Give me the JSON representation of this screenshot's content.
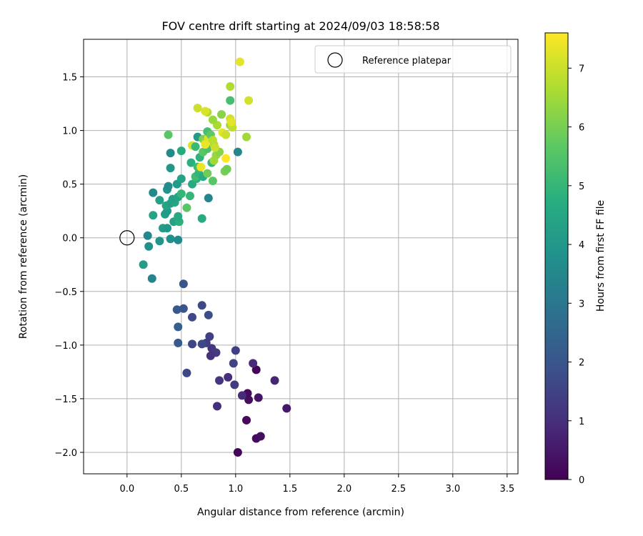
{
  "chart_data": {
    "type": "scatter",
    "title": "FOV centre drift starting at 2024/09/03 18:58:58",
    "xlabel": "Angular distance from reference (arcmin)",
    "ylabel": "Rotation from reference (arcmin)",
    "xlim": [
      -0.4,
      3.6
    ],
    "ylim": [
      -2.2,
      1.85
    ],
    "xticks": [
      0.0,
      0.5,
      1.0,
      1.5,
      2.0,
      2.5,
      3.0,
      3.5
    ],
    "xtick_labels": [
      "0.0",
      "0.5",
      "1.0",
      "1.5",
      "2.0",
      "2.5",
      "3.0",
      "3.5"
    ],
    "yticks": [
      -2.0,
      -1.5,
      -1.0,
      -0.5,
      0.0,
      0.5,
      1.0,
      1.5
    ],
    "ytick_labels": [
      "−2.0",
      "−1.5",
      "−1.0",
      "−0.5",
      "0.0",
      "0.5",
      "1.0",
      "1.5"
    ],
    "grid": true,
    "legend": {
      "position": "upper-right",
      "entries": [
        "Reference platepar"
      ]
    },
    "reference_point": {
      "x": 0.0,
      "y": 0.0
    },
    "colorbar": {
      "label": "Hours from first FF file",
      "colormap": "viridis",
      "range": [
        0,
        7.6
      ],
      "ticks": [
        0,
        1,
        2,
        3,
        4,
        5,
        6,
        7
      ],
      "tick_labels": [
        "0",
        "1",
        "2",
        "3",
        "4",
        "5",
        "6",
        "7"
      ]
    },
    "points": [
      [
        1.02,
        -2.0,
        0.1
      ],
      [
        1.19,
        -1.87,
        0.2
      ],
      [
        1.23,
        -1.85,
        0.3
      ],
      [
        1.1,
        -1.7,
        0.2
      ],
      [
        1.47,
        -1.59,
        0.5
      ],
      [
        1.21,
        -1.49,
        0.4
      ],
      [
        1.12,
        -1.51,
        0.3
      ],
      [
        1.11,
        -1.45,
        0.2
      ],
      [
        1.19,
        -1.23,
        0.1
      ],
      [
        1.36,
        -1.33,
        0.8
      ],
      [
        1.16,
        -1.17,
        0.9
      ],
      [
        1.06,
        -1.47,
        0.9
      ],
      [
        0.83,
        -1.57,
        1.0
      ],
      [
        0.85,
        -1.33,
        1.2
      ],
      [
        0.93,
        -1.3,
        1.0
      ],
      [
        0.99,
        -1.37,
        1.3
      ],
      [
        0.98,
        -1.17,
        1.5
      ],
      [
        1.0,
        -1.05,
        1.4
      ],
      [
        0.78,
        -1.03,
        1.2
      ],
      [
        0.82,
        -1.07,
        1.3
      ],
      [
        0.76,
        -0.92,
        1.4
      ],
      [
        0.77,
        -1.1,
        1.1
      ],
      [
        0.73,
        -0.98,
        1.4
      ],
      [
        0.69,
        -0.99,
        1.7
      ],
      [
        0.6,
        -0.99,
        1.6
      ],
      [
        0.6,
        -0.74,
        1.7
      ],
      [
        0.55,
        -1.26,
        1.6
      ],
      [
        0.47,
        -0.98,
        2.1
      ],
      [
        0.47,
        -0.83,
        2.3
      ],
      [
        0.46,
        -0.67,
        2.1
      ],
      [
        0.52,
        -0.66,
        2.0
      ],
      [
        0.52,
        -0.43,
        2.0
      ],
      [
        0.69,
        -0.63,
        1.7
      ],
      [
        0.75,
        -0.72,
        1.8
      ],
      [
        0.15,
        -0.25,
        4.2
      ],
      [
        0.2,
        -0.08,
        3.8
      ],
      [
        0.23,
        -0.38,
        3.4
      ],
      [
        0.19,
        0.02,
        3.5
      ],
      [
        0.3,
        -0.03,
        3.9
      ],
      [
        0.4,
        -0.01,
        3.8
      ],
      [
        0.47,
        -0.02,
        3.6
      ],
      [
        0.33,
        0.09,
        4.2
      ],
      [
        0.37,
        0.09,
        4.0
      ],
      [
        0.43,
        0.15,
        4.4
      ],
      [
        0.48,
        0.15,
        4.8
      ],
      [
        0.47,
        0.2,
        4.6
      ],
      [
        0.35,
        0.22,
        4.2
      ],
      [
        0.37,
        0.25,
        4.1
      ],
      [
        0.24,
        0.21,
        4.4
      ],
      [
        0.3,
        0.35,
        4.3
      ],
      [
        0.36,
        0.3,
        4.4
      ],
      [
        0.4,
        0.32,
        4.2
      ],
      [
        0.44,
        0.33,
        4.5
      ],
      [
        0.42,
        0.36,
        4.3
      ],
      [
        0.47,
        0.38,
        4.4
      ],
      [
        0.5,
        0.41,
        5.0
      ],
      [
        0.37,
        0.45,
        3.9
      ],
      [
        0.38,
        0.48,
        3.7
      ],
      [
        0.24,
        0.42,
        3.6
      ],
      [
        0.46,
        0.5,
        4.1
      ],
      [
        0.5,
        0.55,
        4.4
      ],
      [
        0.55,
        0.28,
        5.6
      ],
      [
        0.58,
        0.39,
        5.0
      ],
      [
        0.6,
        0.5,
        4.6
      ],
      [
        0.64,
        0.55,
        4.8
      ],
      [
        0.63,
        0.57,
        5.2
      ],
      [
        0.66,
        0.6,
        5.0
      ],
      [
        0.7,
        0.57,
        4.7
      ],
      [
        0.75,
        0.37,
        3.4
      ],
      [
        0.69,
        0.18,
        4.6
      ],
      [
        0.4,
        0.65,
        4.0
      ],
      [
        0.4,
        0.79,
        3.6
      ],
      [
        0.5,
        0.81,
        4.6
      ],
      [
        0.38,
        0.96,
        5.6
      ],
      [
        0.59,
        0.7,
        4.8
      ],
      [
        0.65,
        0.66,
        5.2
      ],
      [
        0.67,
        0.75,
        4.9
      ],
      [
        0.7,
        0.8,
        5.6
      ],
      [
        0.74,
        0.83,
        5.4
      ],
      [
        0.74,
        0.6,
        5.9
      ],
      [
        0.78,
        0.7,
        5.0
      ],
      [
        0.79,
        0.53,
        5.6
      ],
      [
        0.8,
        0.72,
        6.5
      ],
      [
        0.8,
        0.87,
        6.7
      ],
      [
        0.82,
        0.77,
        6.4
      ],
      [
        0.85,
        0.8,
        6.2
      ],
      [
        0.68,
        0.66,
        7.4
      ],
      [
        0.6,
        0.86,
        7.2
      ],
      [
        0.65,
        0.94,
        4.1
      ],
      [
        0.63,
        0.85,
        5.1
      ],
      [
        0.7,
        0.92,
        6.1
      ],
      [
        0.72,
        0.89,
        6.5
      ],
      [
        0.75,
        0.93,
        7.2
      ],
      [
        0.74,
        0.99,
        5.3
      ],
      [
        0.77,
        0.96,
        5.7
      ],
      [
        0.72,
        0.87,
        7.4
      ],
      [
        0.79,
        0.91,
        6.8
      ],
      [
        0.81,
        0.84,
        7.0
      ],
      [
        0.9,
        0.62,
        6.0
      ],
      [
        0.92,
        0.64,
        5.9
      ],
      [
        0.91,
        0.74,
        7.6
      ],
      [
        0.88,
        0.98,
        7.3
      ],
      [
        0.91,
        0.96,
        7.0
      ],
      [
        0.95,
        1.05,
        6.5
      ],
      [
        0.97,
        1.03,
        6.9
      ],
      [
        0.83,
        1.05,
        6.6
      ],
      [
        0.79,
        1.1,
        6.4
      ],
      [
        0.87,
        1.15,
        6.2
      ],
      [
        0.95,
        1.11,
        7.1
      ],
      [
        0.96,
        1.08,
        7.3
      ],
      [
        0.74,
        1.17,
        6.7
      ],
      [
        0.72,
        1.18,
        7.2
      ],
      [
        0.65,
        1.21,
        7.0
      ],
      [
        1.02,
        0.8,
        3.5
      ],
      [
        1.1,
        0.94,
        6.5
      ],
      [
        0.95,
        1.28,
        5.3
      ],
      [
        0.95,
        1.41,
        6.7
      ],
      [
        1.12,
        1.28,
        7.1
      ],
      [
        1.04,
        1.64,
        7.3
      ]
    ]
  }
}
